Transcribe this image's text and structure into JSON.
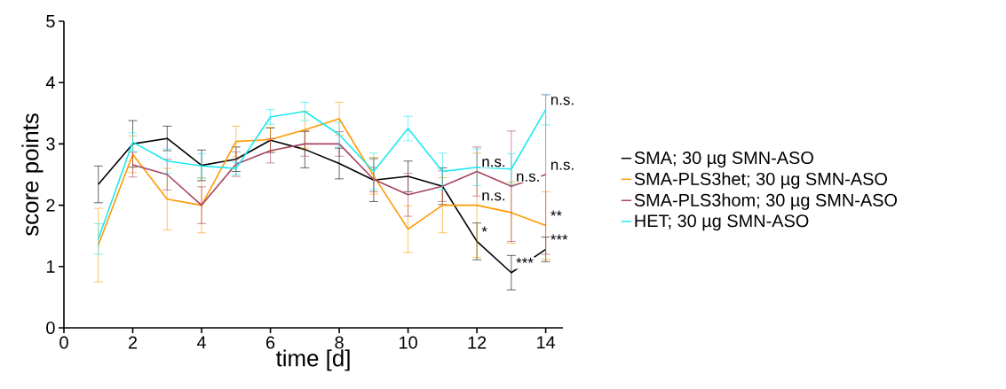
{
  "chart_data": {
    "type": "line",
    "xlabel": "time [d]",
    "ylabel": "score points",
    "x": [
      1,
      2,
      3,
      4,
      5,
      6,
      7,
      8,
      9,
      10,
      11,
      12,
      13,
      14
    ],
    "xlim": [
      0,
      14.5
    ],
    "ylim": [
      0,
      5
    ],
    "xticks": [
      0,
      2,
      4,
      6,
      8,
      10,
      12,
      14
    ],
    "yticks": [
      0,
      1,
      2,
      3,
      4,
      5
    ],
    "legend": "right",
    "series": [
      {
        "name": "SMA; 30 µg SMN-ASO",
        "color": "#000000",
        "values": [
          2.34,
          3.0,
          3.09,
          2.65,
          2.75,
          3.06,
          2.91,
          2.68,
          2.41,
          2.47,
          2.31,
          1.41,
          0.9,
          1.28
        ],
        "errors": [
          0.3,
          0.38,
          0.2,
          0.25,
          0.2,
          0.2,
          0.3,
          0.25,
          0.35,
          0.25,
          0.3,
          0.3,
          0.28,
          0.2
        ]
      },
      {
        "name": "SMA-PLS3het; 30 µg SMN-ASO",
        "color": "#ff9900",
        "values": [
          1.35,
          2.83,
          2.1,
          2.0,
          3.04,
          3.07,
          3.23,
          3.41,
          2.48,
          1.61,
          2.0,
          2.0,
          1.88,
          1.67
        ],
        "errors": [
          0.6,
          0.3,
          0.5,
          0.45,
          0.25,
          0.2,
          0.3,
          0.27,
          0.3,
          0.38,
          0.45,
          0.85,
          0.5,
          0.55
        ]
      },
      {
        "name": "SMA-PLS3hom; 30 µg SMN-ASO",
        "color": "#a8435f",
        "values": [
          null,
          2.66,
          2.5,
          2.0,
          2.67,
          2.89,
          3.0,
          3.0,
          2.42,
          2.17,
          2.31,
          2.55,
          2.31,
          2.5
        ],
        "errors": [
          null,
          0.2,
          0.25,
          0.3,
          0.2,
          0.2,
          0.2,
          0.2,
          0.2,
          0.35,
          0.25,
          0.4,
          0.9,
          1.3
        ]
      },
      {
        "name": "HET; 30 µg SMN-ASO",
        "color": "#1ee8f0",
        "values": [
          1.45,
          3.03,
          2.72,
          2.64,
          2.6,
          3.44,
          3.53,
          3.15,
          2.55,
          3.25,
          2.55,
          2.62,
          2.59,
          3.56
        ],
        "errors": [
          0.25,
          0.15,
          0.2,
          0.2,
          0.1,
          0.12,
          0.15,
          0.2,
          0.3,
          0.2,
          0.3,
          0.3,
          0.25,
          0.25
        ]
      }
    ],
    "annotations": [
      {
        "text": "n.s.",
        "x": 12,
        "y": 2.55
      },
      {
        "text": "n.s.",
        "x": 13,
        "y": 2.31
      },
      {
        "text": "n.s.",
        "x": 14,
        "y": 2.5
      },
      {
        "text": "n.s.",
        "x": 14,
        "y": 3.56
      },
      {
        "text": "n.s.",
        "x": 12,
        "y": 2.0
      },
      {
        "text": "*",
        "x": 12,
        "y": 1.41
      },
      {
        "text": "**",
        "x": 14,
        "y": 1.67
      },
      {
        "text": "***",
        "x": 13,
        "y": 0.9
      },
      {
        "text": "***",
        "x": 14,
        "y": 1.28
      }
    ]
  }
}
